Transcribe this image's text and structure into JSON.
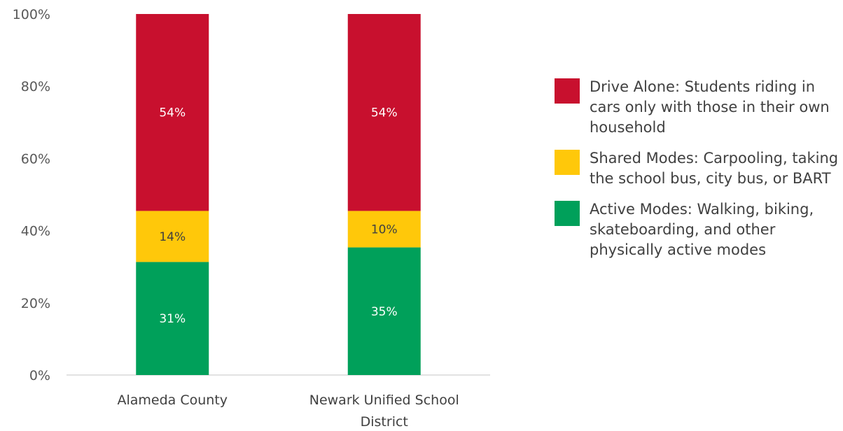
{
  "chart_data": {
    "type": "bar",
    "stacked": true,
    "categories": [
      "Alameda County",
      "Newark Unified School District"
    ],
    "series": [
      {
        "name": "Active Modes: Walking, biking, skateboarding, and other physically active modes",
        "values": [
          31,
          35
        ],
        "labels": [
          "31%",
          "35%"
        ],
        "color": "#00A05A"
      },
      {
        "name": "Shared Modes: Carpooling, taking the school bus, city bus, or BART",
        "values": [
          14,
          10
        ],
        "labels": [
          "14%",
          "10%"
        ],
        "color": "#FFC80A"
      },
      {
        "name": "Drive Alone: Students riding in cars only with those in their own household",
        "values": [
          54,
          54
        ],
        "labels": [
          "54%",
          "54%"
        ],
        "color": "#C8102E"
      }
    ],
    "ylim": [
      0,
      100
    ],
    "yticks": [
      "0%",
      "20%",
      "40%",
      "60%",
      "80%",
      "100%"
    ],
    "grid": false,
    "legend_position": "right"
  },
  "legend": [
    {
      "color": "#C8102E",
      "label": "Drive Alone: Students riding in cars only with those in their own household"
    },
    {
      "color": "#FFC80A",
      "label": "Shared Modes: Carpooling, taking the school bus, city bus, or BART"
    },
    {
      "color": "#00A05A",
      "label": "Active Modes: Walking, biking, skateboarding, and other physically active modes"
    }
  ]
}
